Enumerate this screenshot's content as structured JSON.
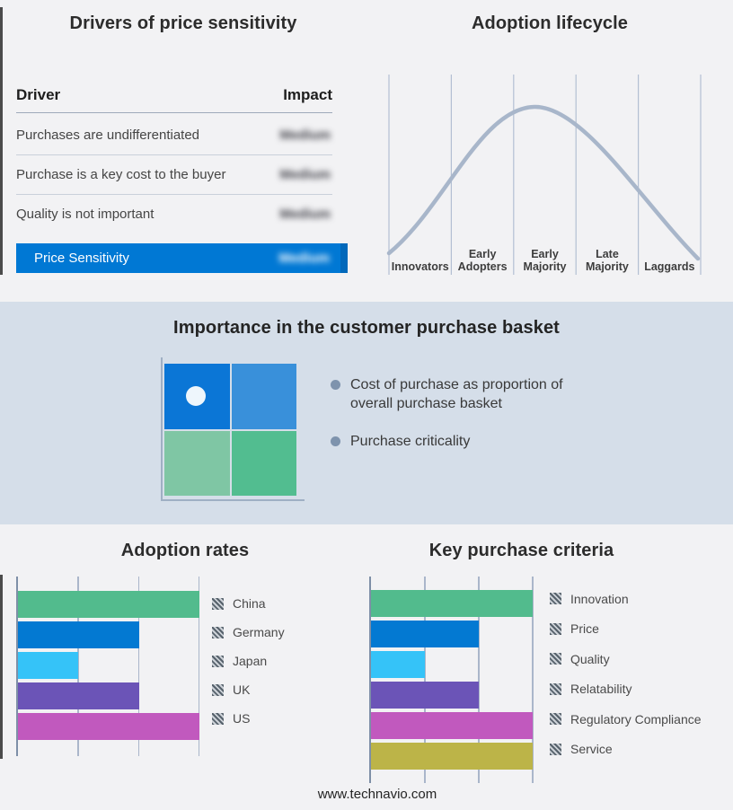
{
  "footer": {
    "url": "www.technavio.com"
  },
  "colors": {
    "page_bg": "#f2f2f4",
    "band_bg": "#d5dee9",
    "accent_blue": "#0078d4",
    "curve": "#a8b6ca",
    "gridline": "#aab6ca",
    "quadrant_top_left": "#0b76d6",
    "quadrant_top_right": "#3990da",
    "quadrant_bottom_left": "#7fc6a4",
    "quadrant_bottom_right": "#52bd90"
  },
  "drivers_panel": {
    "title": "Drivers of price sensitivity",
    "columns": {
      "driver": "Driver",
      "impact": "Impact"
    },
    "rows": [
      {
        "driver": "Purchases are undifferentiated",
        "impact_blurred": "Medium"
      },
      {
        "driver": "Purchase is a key cost to the buyer",
        "impact_blurred": "Medium"
      },
      {
        "driver": "Quality is not important",
        "impact_blurred": "Medium"
      }
    ],
    "highlight_row": {
      "label": "Price Sensitivity",
      "impact_blurred": "Medium"
    }
  },
  "lifecycle_panel": {
    "title": "Adoption lifecycle"
  },
  "basket_panel": {
    "title": "Importance in the customer purchase basket",
    "bullets": [
      "Cost of purchase as proportion of overall purchase basket",
      "Purchase criticality"
    ]
  },
  "chart_data": [
    {
      "type": "table",
      "title": "Drivers of price sensitivity",
      "columns": [
        "Driver",
        "Impact"
      ],
      "rows": [
        [
          "Purchases are undifferentiated",
          "Medium (blurred)"
        ],
        [
          "Purchase is a key cost to the buyer",
          "Medium (blurred)"
        ],
        [
          "Quality is not important",
          "Medium (blurred)"
        ],
        [
          "Price Sensitivity",
          "Medium (blurred)"
        ]
      ]
    },
    {
      "type": "line",
      "title": "Adoption lifecycle",
      "categories": [
        "Innovators",
        "Early Adopters",
        "Early Majority",
        "Late Majority",
        "Laggards"
      ],
      "shape": "bell curve peaking over Early Majority",
      "grid": "vertical segment dividers"
    },
    {
      "type": "bar",
      "title": "Adoption rates",
      "orientation": "horizontal",
      "categories": [
        "China",
        "Germany",
        "Japan",
        "UK",
        "US"
      ],
      "values": [
        3,
        2,
        1,
        2,
        3
      ],
      "xlim": [
        0,
        3
      ],
      "value_note": "relative lengths in gridline units, no numeric axis labels shown",
      "bar_colors": [
        "#52bb8d",
        "#0379d2",
        "#35c3f8",
        "#6b54b7",
        "#c159be"
      ],
      "legend_position": "right"
    },
    {
      "type": "bar",
      "title": "Key purchase criteria",
      "orientation": "horizontal",
      "categories": [
        "Innovation",
        "Price",
        "Quality",
        "Relatability",
        "Regulatory Compliance",
        "Service"
      ],
      "values": [
        3,
        2,
        1,
        2,
        3,
        3
      ],
      "xlim": [
        0,
        3
      ],
      "value_note": "relative lengths in gridline units, no numeric axis labels shown",
      "bar_colors": [
        "#52bb8d",
        "#0379d2",
        "#35c3f8",
        "#6b54b7",
        "#c159be",
        "#bcb448"
      ],
      "legend_position": "right"
    }
  ]
}
